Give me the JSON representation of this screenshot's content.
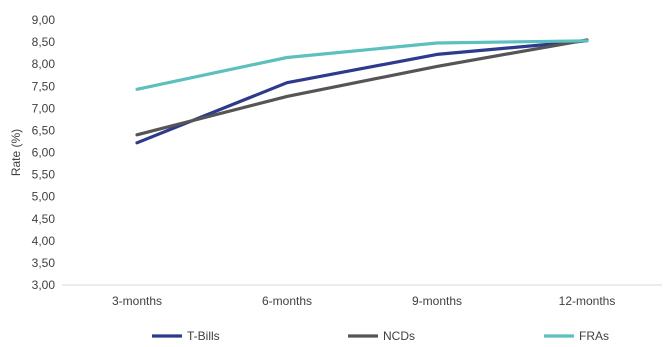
{
  "chart_data": {
    "type": "line",
    "title": "",
    "xlabel": "",
    "ylabel": "Rate (%)",
    "categories": [
      "3-months",
      "6-months",
      "9-months",
      "12-months"
    ],
    "ylim": [
      3.0,
      9.0
    ],
    "yticks": [
      "3,00",
      "3,50",
      "4,00",
      "4,50",
      "5,00",
      "5,50",
      "6,00",
      "6,50",
      "7,00",
      "7,50",
      "8,00",
      "8,50",
      "9,00"
    ],
    "grid": false,
    "legend_position": "bottom",
    "series": [
      {
        "name": "T-Bills",
        "color": "#2E3A8C",
        "values": [
          6.22,
          7.58,
          8.22,
          8.53
        ]
      },
      {
        "name": "NCDs",
        "color": "#555555",
        "values": [
          6.4,
          7.27,
          7.95,
          8.55
        ]
      },
      {
        "name": "FRAs",
        "color": "#5BC0BE",
        "values": [
          7.43,
          8.15,
          8.48,
          8.53
        ]
      }
    ]
  }
}
